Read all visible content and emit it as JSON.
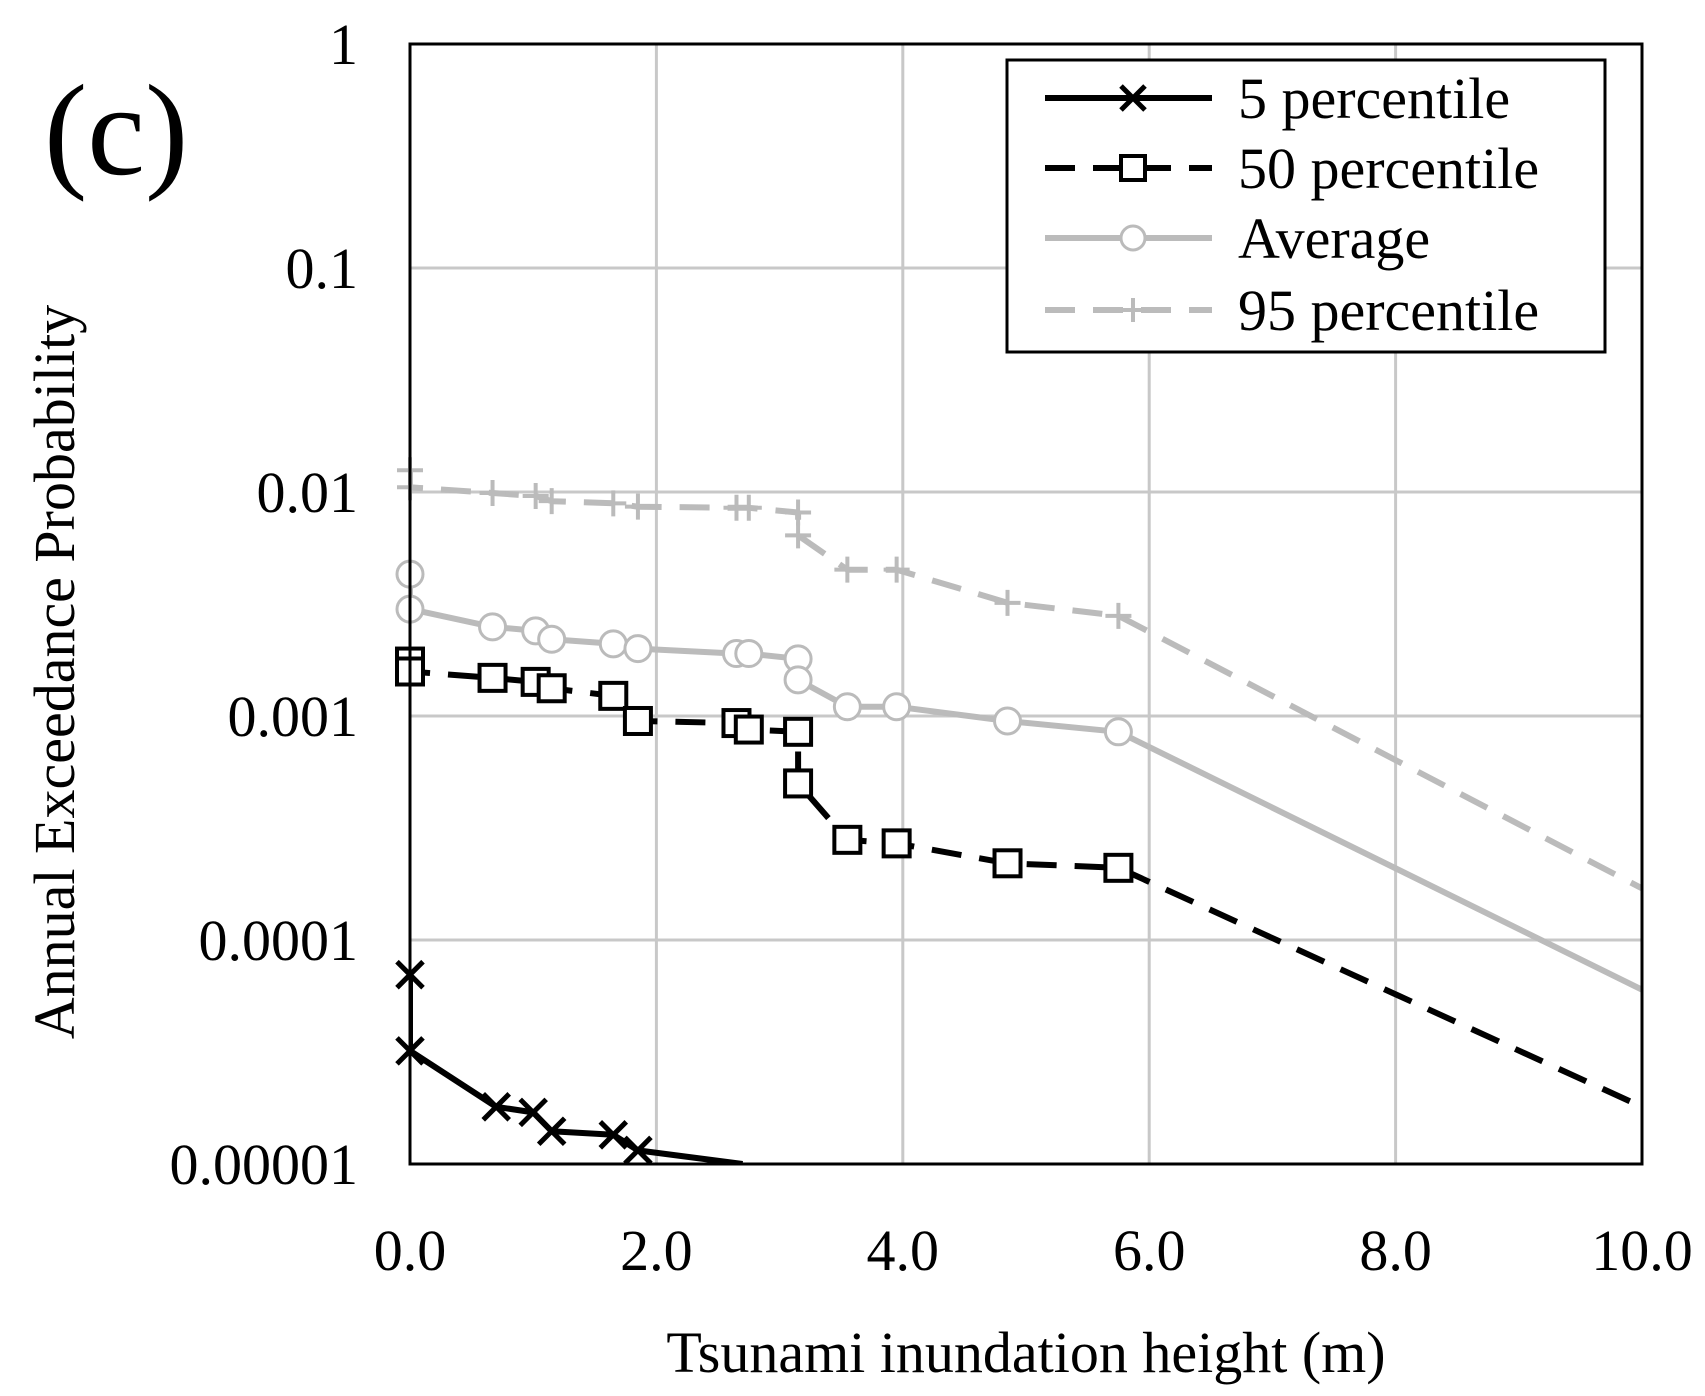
{
  "panel_label": "(c)",
  "chart_data": {
    "type": "line",
    "title": "",
    "xlabel": "Tsunami inundation height (m)",
    "ylabel": "Annual Exceedance Probability",
    "xlim": [
      0,
      10
    ],
    "ylim": [
      1e-05,
      1
    ],
    "yscale": "log",
    "grid": true,
    "legend_position": "top-right",
    "x_ticks": [
      0,
      2,
      4,
      6,
      8,
      10
    ],
    "x_tick_labels": [
      "0.0",
      "2.0",
      "4.0",
      "6.0",
      "8.0",
      "10.0"
    ],
    "y_ticks": [
      1,
      0.1,
      0.01,
      0.001,
      0.0001,
      1e-05
    ],
    "y_tick_labels": [
      "1",
      "0.1",
      "0.01",
      "0.001",
      "0.0001",
      "0.00001"
    ],
    "series": [
      {
        "name": "5 percentile",
        "color": "#000000",
        "dash": "solid",
        "marker": "x",
        "x": [
          0.0,
          0.0,
          0.7,
          1.0,
          1.15,
          1.65,
          1.85,
          2.7
        ],
        "y": [
          7e-05,
          3.2e-05,
          1.8e-05,
          1.7e-05,
          1.4e-05,
          1.35e-05,
          1.15e-05,
          1e-05
        ],
        "marker_x": [
          0.0,
          0.0,
          0.7,
          1.0,
          1.15,
          1.65,
          1.85
        ],
        "marker_y": [
          7e-05,
          3.2e-05,
          1.8e-05,
          1.7e-05,
          1.4e-05,
          1.35e-05,
          1.15e-05
        ]
      },
      {
        "name": "50 percentile",
        "color": "#000000",
        "dash": "dashed",
        "marker": "square",
        "x": [
          0.0,
          0.0,
          0.67,
          1.02,
          1.15,
          1.65,
          1.85,
          2.65,
          2.75,
          3.15,
          3.15,
          3.55,
          3.95,
          4.85,
          5.75,
          10.0
        ],
        "y": [
          0.00175,
          0.00158,
          0.00148,
          0.00142,
          0.00133,
          0.00123,
          0.00095,
          0.00093,
          0.00087,
          0.00085,
          0.0005,
          0.00028,
          0.00027,
          0.00022,
          0.00021,
          1.8e-05
        ],
        "marker_x": [
          0.0,
          0.0,
          0.67,
          1.02,
          1.15,
          1.65,
          1.85,
          2.65,
          2.75,
          3.15,
          3.15,
          3.55,
          3.95,
          4.85,
          5.75
        ],
        "marker_y": [
          0.00175,
          0.00158,
          0.00148,
          0.00142,
          0.00133,
          0.00123,
          0.00095,
          0.00093,
          0.00087,
          0.00085,
          0.0005,
          0.00028,
          0.00027,
          0.00022,
          0.00021
        ]
      },
      {
        "name": "Average",
        "color": "#bbbbbb",
        "dash": "solid",
        "marker": "circle",
        "x": [
          0.0,
          0.0,
          0.67,
          1.02,
          1.15,
          1.65,
          1.85,
          2.65,
          2.75,
          3.15,
          3.15,
          3.55,
          3.95,
          4.85,
          5.75,
          10.0
        ],
        "y": [
          0.0043,
          0.003,
          0.0025,
          0.0024,
          0.0022,
          0.0021,
          0.002,
          0.0019,
          0.0019,
          0.0018,
          0.00145,
          0.0011,
          0.0011,
          0.00095,
          0.00085,
          6e-05
        ],
        "marker_x": [
          0.0,
          0.0,
          0.67,
          1.02,
          1.15,
          1.65,
          1.85,
          2.65,
          2.75,
          3.15,
          3.15,
          3.55,
          3.95,
          4.85,
          5.75
        ],
        "marker_y": [
          0.0043,
          0.003,
          0.0025,
          0.0024,
          0.0022,
          0.0021,
          0.002,
          0.0019,
          0.0019,
          0.0018,
          0.00145,
          0.0011,
          0.0011,
          0.00095,
          0.00085
        ]
      },
      {
        "name": "95 percentile",
        "color": "#bbbbbb",
        "dash": "dashed",
        "marker": "plus",
        "x": [
          0.0,
          0.0,
          0.67,
          1.02,
          1.15,
          1.65,
          1.85,
          2.65,
          2.75,
          3.15,
          3.15,
          3.55,
          3.95,
          4.85,
          5.75,
          10.0
        ],
        "y": [
          0.0125,
          0.0105,
          0.0099,
          0.0096,
          0.0091,
          0.0089,
          0.0086,
          0.0085,
          0.0085,
          0.0081,
          0.0064,
          0.0045,
          0.0045,
          0.0032,
          0.0028,
          0.00017
        ],
        "marker_x": [
          0.0,
          0.0,
          0.67,
          1.02,
          1.15,
          1.65,
          1.85,
          2.65,
          2.75,
          3.15,
          3.15,
          3.55,
          3.95,
          4.85,
          5.75
        ],
        "marker_y": [
          0.0125,
          0.0105,
          0.0099,
          0.0096,
          0.0091,
          0.0089,
          0.0086,
          0.0085,
          0.0085,
          0.0081,
          0.0064,
          0.0045,
          0.0045,
          0.0032,
          0.0028
        ]
      }
    ]
  }
}
